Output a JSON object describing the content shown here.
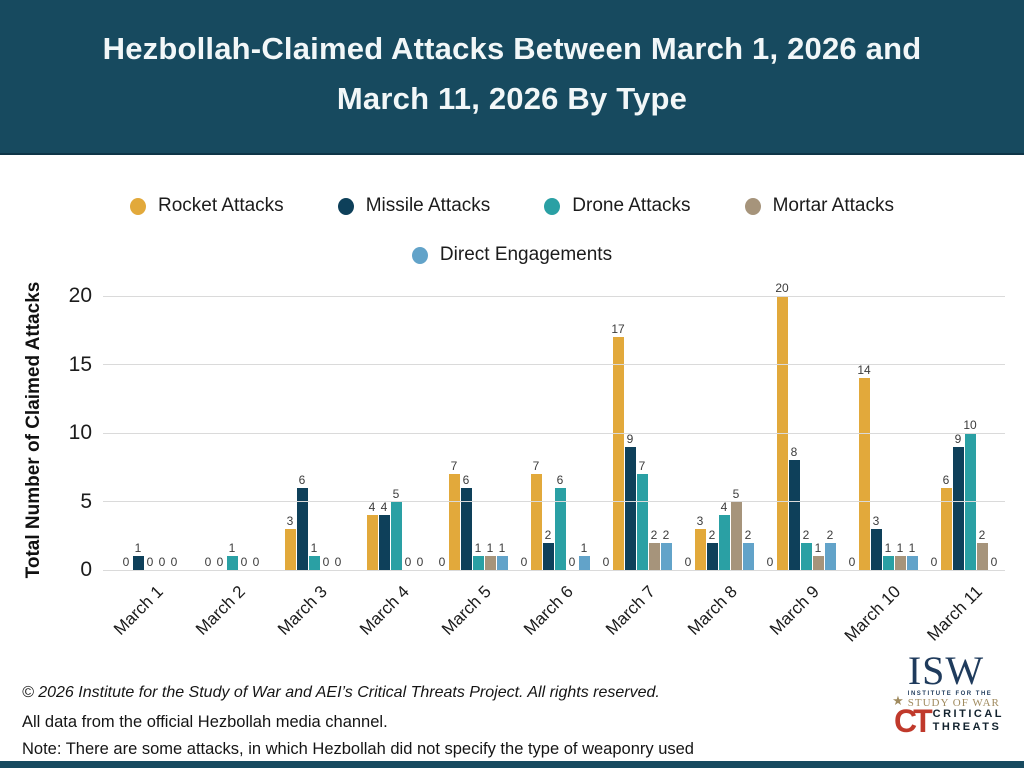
{
  "header": {
    "title_line1": "Hezbollah-Claimed Attacks Between March 1, 2026 and",
    "title_line2": "March 11, 2026 By Type"
  },
  "chart_data": {
    "type": "bar",
    "title": "Hezbollah-Claimed Attacks Between March 1, 2026 and March 11, 2026 By Type",
    "xlabel": "",
    "ylabel": "Total Number of Claimed Attacks",
    "ylim": [
      0,
      20
    ],
    "yticks": [
      0,
      5,
      10,
      15,
      20
    ],
    "grid": true,
    "legend_position": "top",
    "bar_value_labels": true,
    "categories": [
      "March 1",
      "March 2",
      "March 3",
      "March 4",
      "March 5",
      "March 6",
      "March 7",
      "March 8",
      "March 9",
      "March 10",
      "March 11"
    ],
    "series": [
      {
        "name": "Rocket Attacks",
        "color": "#E2A93B",
        "values": [
          0,
          0,
          3,
          4,
          7,
          7,
          17,
          3,
          20,
          14,
          6
        ]
      },
      {
        "name": "Missile Attacks",
        "color": "#0E405A",
        "values": [
          1,
          0,
          6,
          4,
          6,
          2,
          9,
          2,
          8,
          3,
          9
        ]
      },
      {
        "name": "Drone Attacks",
        "color": "#2AA0A4",
        "values": [
          0,
          1,
          1,
          5,
          1,
          6,
          7,
          4,
          2,
          1,
          10
        ]
      },
      {
        "name": "Mortar Attacks",
        "color": "#A6947B",
        "values": [
          0,
          0,
          0,
          0,
          1,
          0,
          2,
          5,
          1,
          1,
          2
        ]
      },
      {
        "name": "Direct Engagements",
        "color": "#62A3C9",
        "values": [
          0,
          0,
          0,
          0,
          1,
          1,
          2,
          2,
          2,
          1,
          0
        ]
      }
    ],
    "extra_zero_labels_before_group": [
      "March 5",
      "March 6",
      "March 7",
      "March 8",
      "March 9",
      "March 10",
      "March 11"
    ]
  },
  "footer": {
    "copyright": "© 2026 Institute for the Study of War and AEI’s Critical Threats Project. All rights reserved.",
    "source": "All data from the official Hezbollah media channel.",
    "note": "Note: There are some attacks, in which Hezbollah did not specify the type of weaponry used"
  },
  "logos": {
    "isw": {
      "acronym": "ISW",
      "star": "★",
      "sub1": "INSTITUTE FOR THE",
      "sub2": "STUDY OF WAR"
    },
    "ct": {
      "monogram": "CT",
      "line1": "CRITICAL",
      "line2": "THREATS"
    }
  },
  "colors": {
    "header_bg": "#174A5F",
    "gridline": "#DADADA",
    "ct_red": "#C0392B",
    "isw_navy": "#1F3B5C",
    "isw_tan": "#A08B5F"
  }
}
